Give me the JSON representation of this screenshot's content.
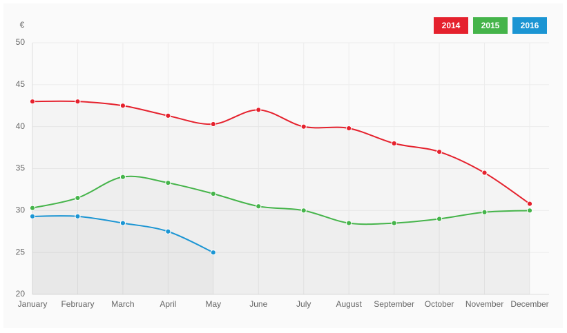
{
  "chart_data": {
    "type": "line",
    "y_label": "€",
    "categories": [
      "January",
      "February",
      "March",
      "April",
      "May",
      "June",
      "July",
      "August",
      "September",
      "October",
      "November",
      "December"
    ],
    "series": [
      {
        "name": "2014",
        "color": "#e5212d",
        "values": [
          43,
          43,
          42.5,
          41.3,
          40.3,
          42,
          40,
          39.8,
          38,
          37,
          34.5,
          30.8
        ]
      },
      {
        "name": "2015",
        "color": "#45b44a",
        "values": [
          30.3,
          31.5,
          34,
          33.3,
          32,
          30.5,
          30,
          28.5,
          28.5,
          29,
          29.8,
          30
        ]
      },
      {
        "name": "2016",
        "color": "#1b95d3",
        "values": [
          29.3,
          29.3,
          28.5,
          27.5,
          25,
          null,
          null,
          null,
          null,
          null,
          null,
          null
        ]
      }
    ],
    "ylim": [
      20,
      50
    ],
    "yticks": [
      20,
      25,
      30,
      35,
      40,
      45,
      50
    ],
    "grid": true,
    "legend": "top-right",
    "area": true
  }
}
